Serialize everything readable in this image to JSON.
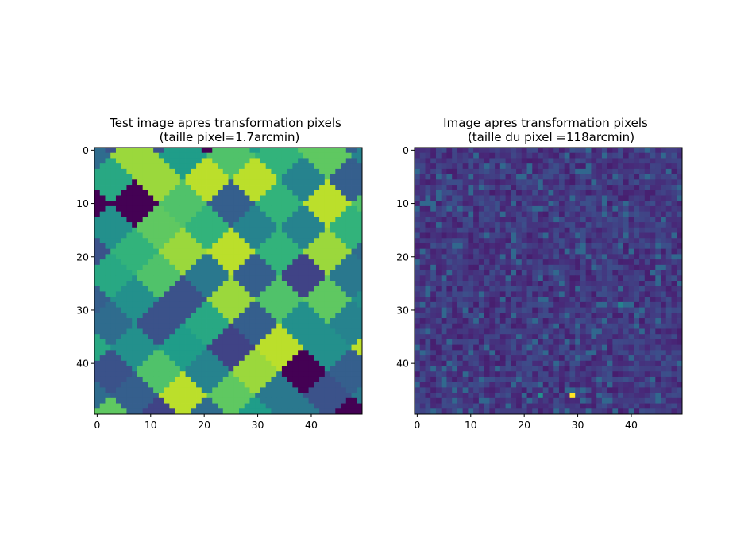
{
  "chart_data": [
    {
      "type": "heatmap",
      "title_line1": "Test image apres transformation pixels",
      "title_line2": "(taille pixel=1.7arcmin)",
      "rows": 50,
      "cols": 50,
      "xlim": [
        -0.5,
        49.5
      ],
      "ylim": [
        49.5,
        -0.5
      ],
      "xticks": [
        0,
        10,
        20,
        30,
        40
      ],
      "yticks": [
        0,
        10,
        20,
        30,
        40
      ],
      "colormap": "viridis",
      "description_style": "rotated-diamond tiles",
      "tile_seed": 7
    },
    {
      "type": "heatmap",
      "title_line1": "Image apres transformation pixels",
      "title_line2": "(taille du pixel =118arcmin)",
      "rows": 50,
      "cols": 50,
      "xlim": [
        -0.5,
        49.5
      ],
      "ylim": [
        49.5,
        -0.5
      ],
      "xticks": [
        0,
        10,
        20,
        30,
        40
      ],
      "yticks": [
        0,
        10,
        20,
        30,
        40
      ],
      "colormap": "viridis",
      "noise_seed": 11,
      "bright_pixels": [
        {
          "row": 46,
          "col": 29,
          "value": 1.0
        },
        {
          "row": 46,
          "col": 23,
          "value": 0.5
        },
        {
          "row": 29,
          "col": 38,
          "value": 0.45
        }
      ]
    }
  ]
}
